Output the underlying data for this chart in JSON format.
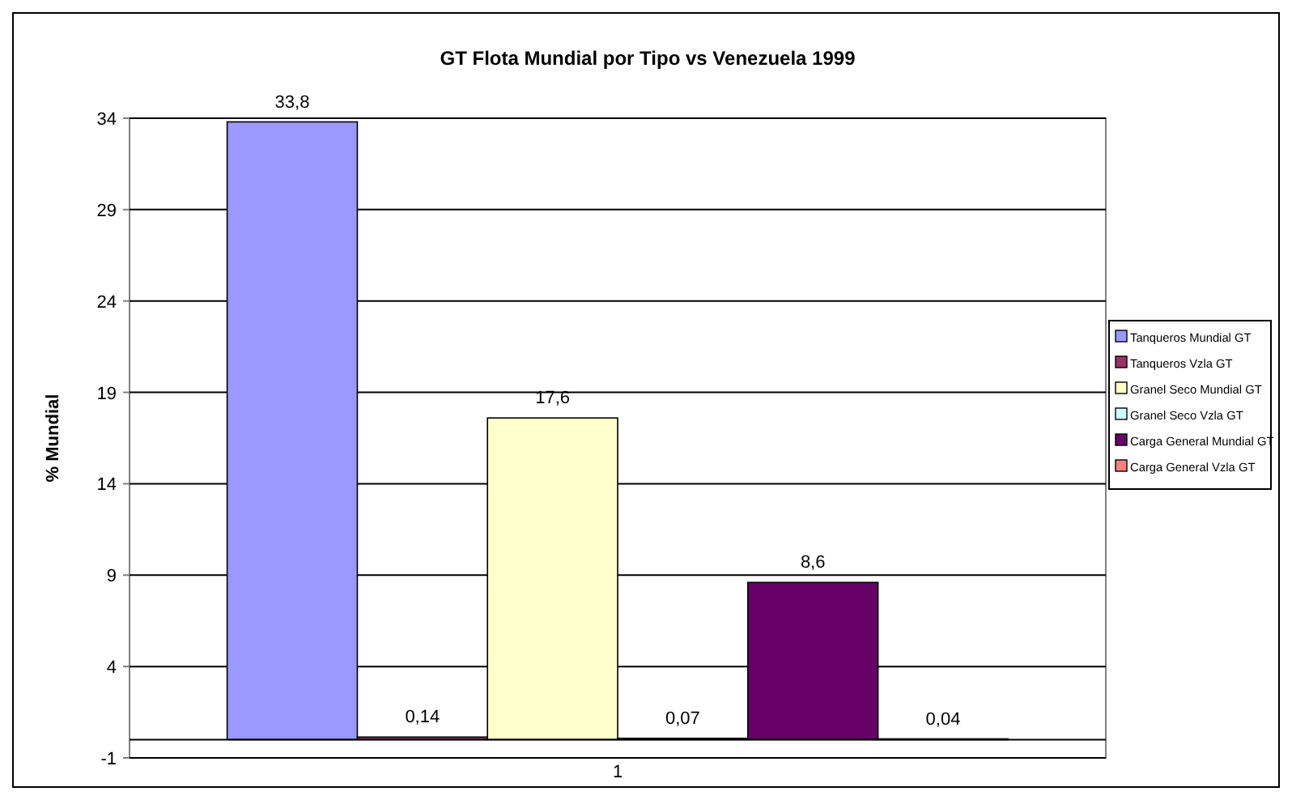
{
  "chart_data": {
    "type": "bar",
    "title": "GT Flota Mundial por Tipo vs Venezuela 1999",
    "ylabel": "% Mundial",
    "categories": [
      "1"
    ],
    "series": [
      {
        "name": "Tanqueros Mundial GT",
        "color": "#9999ff",
        "values": [
          33.8
        ],
        "value_labels": [
          "33,8"
        ]
      },
      {
        "name": "Tanqueros Vzla GT",
        "color": "#993366",
        "values": [
          0.14
        ],
        "value_labels": [
          "0,14"
        ]
      },
      {
        "name": "Granel Seco Mundial GT",
        "color": "#ffffcc",
        "values": [
          17.6
        ],
        "value_labels": [
          "17,6"
        ]
      },
      {
        "name": "Granel Seco Vzla GT",
        "color": "#ccffff",
        "values": [
          0.07
        ],
        "value_labels": [
          "0,07"
        ]
      },
      {
        "name": "Carga General Mundial GT",
        "color": "#660066",
        "values": [
          8.6
        ],
        "value_labels": [
          "8,6"
        ]
      },
      {
        "name": "Carga General Vzla GT",
        "color": "#ff8080",
        "values": [
          0.04
        ],
        "value_labels": [
          "0,04"
        ]
      }
    ],
    "ylim": [
      -1,
      34
    ],
    "yticks": [
      -1,
      4,
      9,
      14,
      19,
      24,
      29,
      34
    ],
    "grid": "y",
    "legend": "right"
  }
}
